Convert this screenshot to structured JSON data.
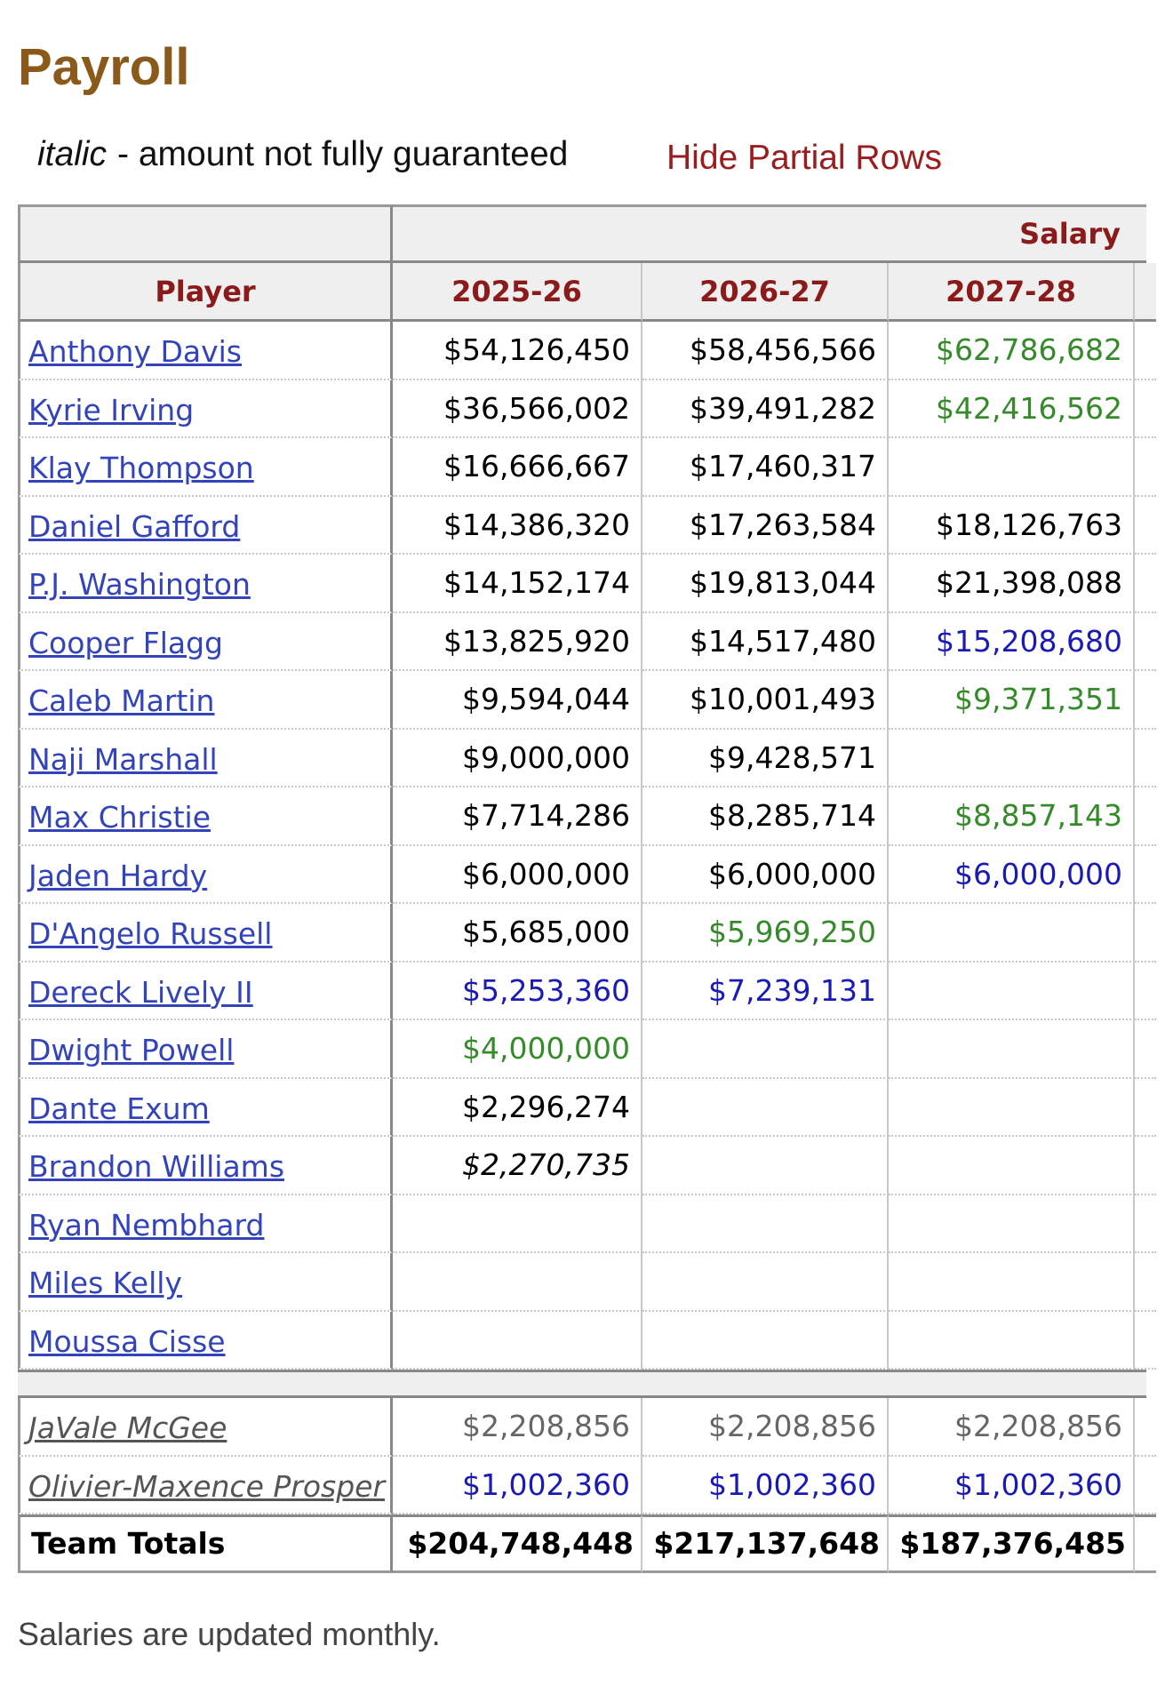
{
  "header": {
    "title": "Payroll"
  },
  "legend": {
    "italic_word": "italic",
    "text": "- amount not fully guaranteed",
    "link": "Hide Partial Rows"
  },
  "table": {
    "group_header": "Salary",
    "columns": [
      "Player",
      "2025-26",
      "2026-27",
      "2027-28"
    ],
    "rows": [
      {
        "player": "Anthony Davis",
        "cells": [
          {
            "text": "$54,126,450"
          },
          {
            "text": "$58,456,566"
          },
          {
            "text": "$62,786,682",
            "color": "#358a2a"
          }
        ]
      },
      {
        "player": "Kyrie Irving",
        "cells": [
          {
            "text": "$36,566,002"
          },
          {
            "text": "$39,491,282"
          },
          {
            "text": "$42,416,562",
            "color": "#358a2a"
          }
        ]
      },
      {
        "player": "Klay Thompson",
        "cells": [
          {
            "text": "$16,666,667"
          },
          {
            "text": "$17,460,317"
          },
          null
        ]
      },
      {
        "player": "Daniel Gafford",
        "cells": [
          {
            "text": "$14,386,320"
          },
          {
            "text": "$17,263,584"
          },
          {
            "text": "$18,126,763"
          }
        ]
      },
      {
        "player": "P.J. Washington",
        "cells": [
          {
            "text": "$14,152,174"
          },
          {
            "text": "$19,813,044"
          },
          {
            "text": "$21,398,088"
          }
        ]
      },
      {
        "player": "Cooper Flagg",
        "cells": [
          {
            "text": "$13,825,920"
          },
          {
            "text": "$14,517,480"
          },
          {
            "text": "$15,208,680",
            "color": "#1a1ab4"
          }
        ]
      },
      {
        "player": "Caleb Martin",
        "cells": [
          {
            "text": "$9,594,044"
          },
          {
            "text": "$10,001,493"
          },
          {
            "text": "$9,371,351",
            "color": "#358a2a"
          }
        ]
      },
      {
        "player": "Naji Marshall",
        "cells": [
          {
            "text": "$9,000,000"
          },
          {
            "text": "$9,428,571"
          },
          null
        ]
      },
      {
        "player": "Max Christie",
        "cells": [
          {
            "text": "$7,714,286"
          },
          {
            "text": "$8,285,714"
          },
          {
            "text": "$8,857,143",
            "color": "#358a2a"
          }
        ]
      },
      {
        "player": "Jaden Hardy",
        "cells": [
          {
            "text": "$6,000,000"
          },
          {
            "text": "$6,000,000"
          },
          {
            "text": "$6,000,000",
            "color": "#1a1ab4"
          }
        ]
      },
      {
        "player": "D'Angelo Russell",
        "cells": [
          {
            "text": "$5,685,000"
          },
          {
            "text": "$5,969,250",
            "color": "#358a2a"
          },
          null
        ]
      },
      {
        "player": "Dereck Lively II",
        "cells": [
          {
            "text": "$5,253,360",
            "color": "#1a1ab4"
          },
          {
            "text": "$7,239,131",
            "color": "#1a1ab4"
          },
          null
        ]
      },
      {
        "player": "Dwight Powell",
        "cells": [
          {
            "text": "$4,000,000",
            "color": "#358a2a"
          },
          null,
          null
        ]
      },
      {
        "player": "Dante Exum",
        "cells": [
          {
            "text": "$2,296,274"
          },
          null,
          null
        ]
      },
      {
        "player": "Brandon Williams",
        "cells": [
          {
            "text": "$2,270,735",
            "italic": true
          },
          null,
          null
        ]
      },
      {
        "player": "Ryan Nembhard",
        "cells": [
          null,
          null,
          null
        ]
      },
      {
        "player": "Miles Kelly",
        "cells": [
          null,
          null,
          null
        ]
      },
      {
        "player": "Moussa Cisse",
        "cells": [
          null,
          null,
          null
        ]
      }
    ],
    "partial_rows": [
      {
        "player": "JaVale McGee",
        "cells": [
          {
            "text": "$2,208,856",
            "color": "#666666"
          },
          {
            "text": "$2,208,856",
            "color": "#666666"
          },
          {
            "text": "$2,208,856",
            "color": "#666666"
          }
        ]
      },
      {
        "player": "Olivier-Maxence Prosper",
        "cells": [
          {
            "text": "$1,002,360",
            "color": "#1a1ab4"
          },
          {
            "text": "$1,002,360",
            "color": "#1a1ab4"
          },
          {
            "text": "$1,002,360",
            "color": "#1a1ab4"
          }
        ]
      }
    ],
    "totals": {
      "label": "Team Totals",
      "cells": [
        "$204,748,448",
        "$217,137,648",
        "$187,376,485"
      ]
    }
  },
  "footer": "Salaries are updated monthly."
}
